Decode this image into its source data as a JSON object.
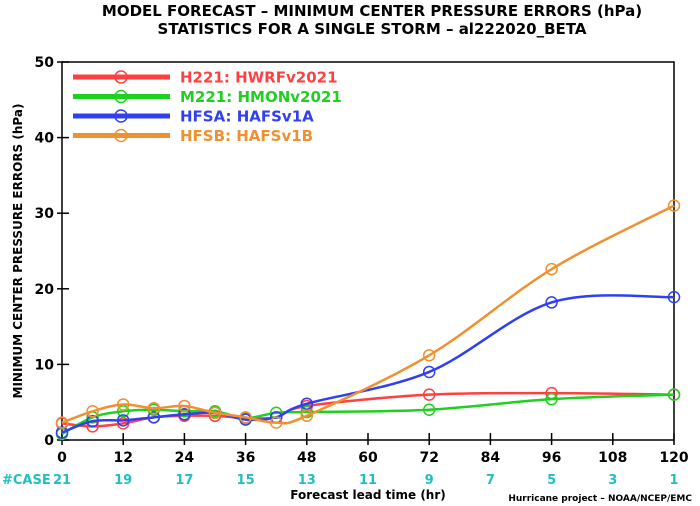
{
  "chart_data": {
    "type": "line",
    "title": "MODEL FORECAST – MINIMUM CENTER PRESSURE ERRORS (hPa)",
    "subtitle": "STATISTICS FOR A SINGLE STORM – al222020_BETA",
    "xlabel": "Forecast lead time (hr)",
    "ylabel": "MINIMUM CENTER PRESSURE ERRORS (hPa)",
    "xlim": [
      0,
      120
    ],
    "ylim": [
      0,
      50
    ],
    "x_ticks": [
      "0",
      "12",
      "24",
      "36",
      "48",
      "60",
      "72",
      "84",
      "96",
      "108",
      "120"
    ],
    "y_ticks": [
      "0",
      "10",
      "20",
      "30",
      "40",
      "50"
    ],
    "x": [
      0,
      6,
      12,
      18,
      24,
      30,
      36,
      42,
      48,
      72,
      96,
      120
    ],
    "series": [
      {
        "name": "H221:  HWRFv2021",
        "color": "#ff4040",
        "values": [
          2.2,
          1.8,
          2.2,
          3.0,
          3.2,
          3.2,
          2.9,
          3.0,
          4.5,
          6.0,
          6.2,
          6.0
        ]
      },
      {
        "name": "M221:  HMONv2021",
        "color": "#20d020",
        "values": [
          0.8,
          3.0,
          3.8,
          4.0,
          3.8,
          3.8,
          2.9,
          3.6,
          3.7,
          4.0,
          5.4,
          6.0
        ]
      },
      {
        "name": "HFSA:  HAFSv1A",
        "color": "#3040f0",
        "values": [
          1.0,
          2.5,
          2.6,
          3.0,
          3.4,
          3.6,
          2.7,
          3.0,
          4.8,
          9.0,
          18.2,
          18.9
        ]
      },
      {
        "name": "HFSB:  HAFSv1B",
        "color": "#f09030",
        "values": [
          2.3,
          3.8,
          4.7,
          4.2,
          4.5,
          3.6,
          3.0,
          2.3,
          3.2,
          11.2,
          22.6,
          31.0
        ]
      }
    ],
    "legend_position": "top-left",
    "grid": false,
    "case_label": "#CASE",
    "case_color": "#20c0c0",
    "case_counts": [
      "21",
      "19",
      "17",
      "15",
      "13",
      "11",
      "9",
      "7",
      "5",
      "3",
      "1"
    ],
    "credit": "Hurricane project – NOAA/NCEP/EMC"
  }
}
